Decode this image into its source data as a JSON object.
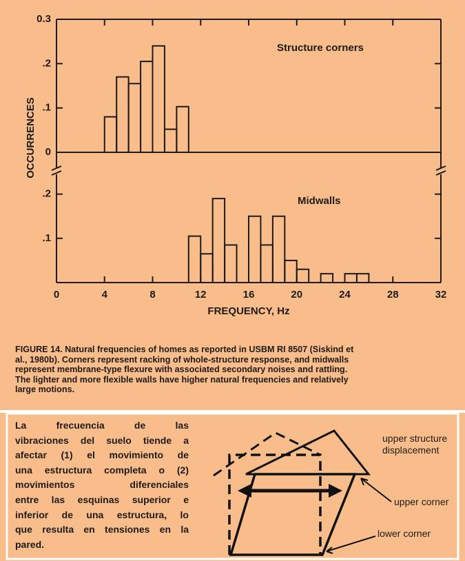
{
  "chart_data": [
    {
      "type": "histogram",
      "title": "Structure corners",
      "ylabel": "OCCURRENCES",
      "bins": [
        4,
        5,
        6,
        7,
        8,
        9,
        10,
        11
      ],
      "values": [
        0.08,
        0.17,
        0.155,
        0.205,
        0.24,
        0.052,
        0.103
      ],
      "xlim": [
        0,
        32
      ],
      "ylim": [
        0,
        0.3
      ],
      "yticks": [
        0,
        {
          "value": 0.1,
          "label": ".1"
        },
        {
          "value": 0.2,
          "label": ".2"
        },
        0.3
      ],
      "color": "#1e1a18"
    },
    {
      "type": "histogram",
      "title": "Midwalls",
      "xlabel": "FREQUENCY, Hz",
      "bins": [
        11,
        12,
        13,
        14,
        15,
        16,
        17,
        18,
        19,
        20,
        21,
        22,
        23,
        24,
        25,
        26
      ],
      "values": [
        0.105,
        0.065,
        0.19,
        0.085,
        0,
        0.15,
        0.085,
        0.15,
        0.05,
        0.03,
        0,
        0.02,
        0,
        0.02,
        0.02
      ],
      "xlim": [
        0,
        32
      ],
      "ylim": [
        0,
        0.24
      ],
      "xticks": [
        0,
        4,
        8,
        12,
        16,
        20,
        24,
        28,
        32
      ],
      "yticks": [
        {
          "value": 0.1,
          "label": ".1"
        },
        {
          "value": 0.2,
          "label": ".2"
        }
      ],
      "color": "#1e1a18"
    }
  ],
  "caption": [
    "FIGURE 14. Natural frequencies of homes as reported in USBM RI 8507 (Siskind et",
    "al., 1980b). Corners represent racking of whole-structure response, and midwalls",
    "represent membrane-type flexure with associated secondary noises and rattling.",
    "The lighter and more flexible walls have higher natural frequencies and relatively",
    "large motions."
  ],
  "paragraph": [
    "La frecuencia de las",
    "vibraciones del suelo tiende a",
    "afectar (1) el movimiento de",
    "una estructura completa o (2)",
    "movimientos diferenciales",
    "entre las esquinas superior e",
    "inferior de una estructura, lo",
    "que resulta en tensiones en la",
    "pared."
  ],
  "diagram": {
    "upper_displacement": "upper structure displacement",
    "upper_corner": "upper corner",
    "lower_corner": "lower corner"
  }
}
